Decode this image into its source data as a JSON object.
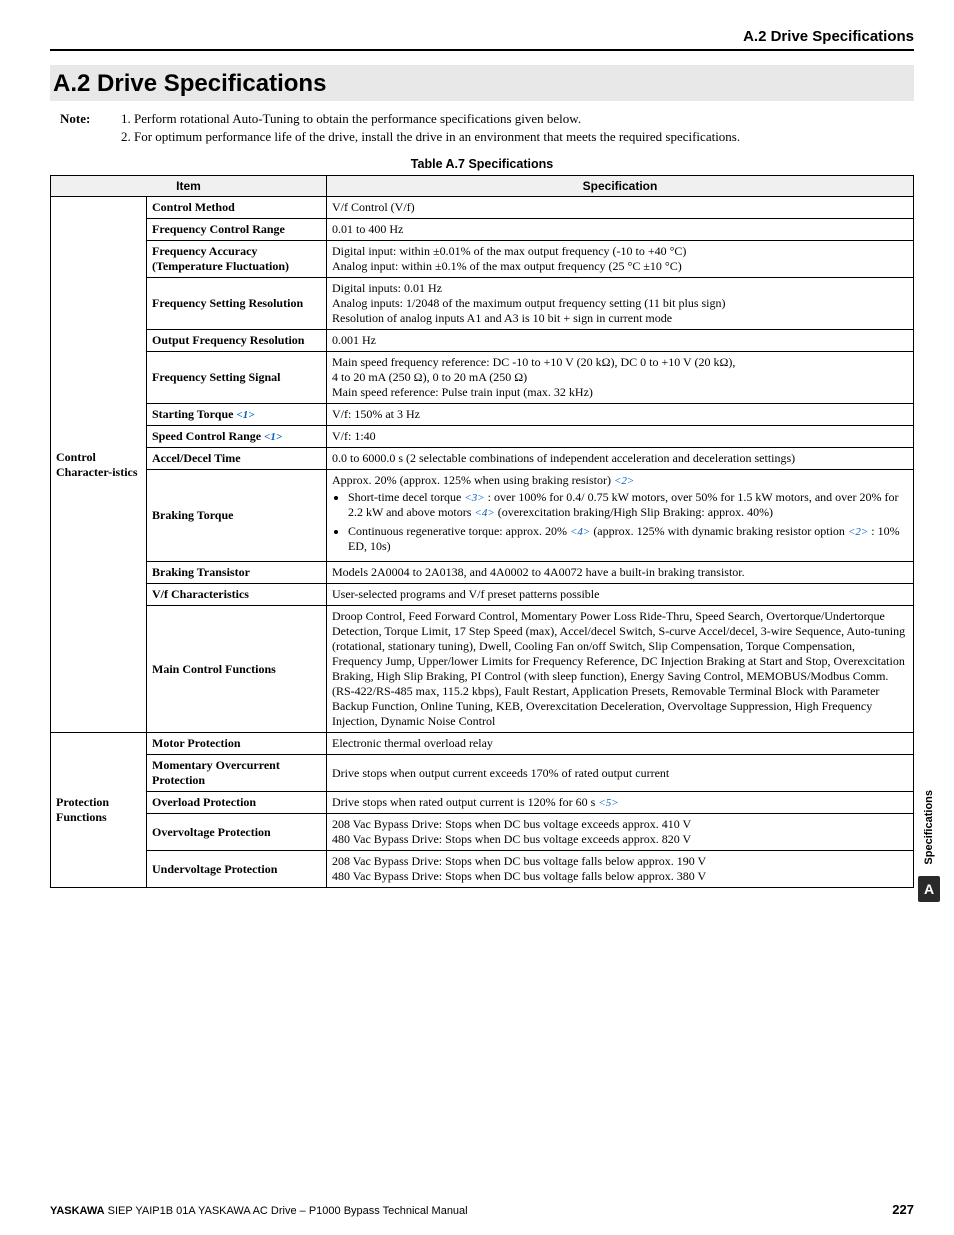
{
  "header": {
    "right": "A.2 Drive Specifications"
  },
  "section": {
    "title": "A.2  Drive Specifications"
  },
  "notes": {
    "label": "Note:",
    "items": [
      "Perform rotational Auto-Tuning to obtain the performance specifications given below.",
      "For optimum performance life of the drive, install the drive in an environment that meets the required specifications."
    ]
  },
  "table": {
    "caption": "Table A.7  Specifications",
    "head": {
      "item": "Item",
      "spec": "Specification"
    },
    "groups": [
      {
        "category": "Control Character-istics",
        "rows": [
          {
            "item": "Control Method",
            "spec_html": "V/f Control (V/f)"
          },
          {
            "item": "Frequency Control Range",
            "spec_html": "0.01 to 400 Hz"
          },
          {
            "item": "Frequency Accuracy (Temperature Fluctuation)",
            "spec_html": "Digital input: within ±0.01% of the max output frequency (-10 to +40 °C)<br>Analog input: within ±0.1% of the max output frequency (25 °C ±10 °C)"
          },
          {
            "item": "Frequency Setting Resolution",
            "spec_html": "Digital inputs: 0.01 Hz<br>Analog inputs: 1/2048 of the maximum output frequency setting (11 bit plus sign)<br>Resolution of analog inputs A1 and A3 is 10 bit + sign in current mode"
          },
          {
            "item": "Output Frequency Resolution",
            "spec_html": "0.001 Hz"
          },
          {
            "item": "Frequency Setting Signal",
            "spec_html": "Main speed frequency reference: DC -10 to +10 V (20 kΩ), DC 0 to +10 V (20 kΩ),<br>4 to 20 mA (250 Ω), 0 to 20 mA (250 Ω)<br>Main speed reference: Pulse train input (max. 32 kHz)"
          },
          {
            "item_html": "Starting Torque <span class=\"ref\">&lt;1&gt;</span>",
            "spec_html": "V/f: 150% at 3 Hz"
          },
          {
            "item_html": "Speed Control Range <span class=\"ref\">&lt;1&gt;</span>",
            "spec_html": "V/f: 1:40"
          },
          {
            "item": "Accel/Decel Time",
            "spec_html": "0.0 to 6000.0 s (2 selectable combinations of independent acceleration and deceleration settings)"
          },
          {
            "item": "Braking Torque",
            "spec_html": "Approx. 20% (approx. 125% when using braking resistor) <span class=\"ref\">&lt;2&gt;</span><ul class=\"bullets\"><li>Short-time decel torque <span class=\"ref\">&lt;3&gt;</span> : over 100% for 0.4/ 0.75 kW motors, over 50% for 1.5 kW motors, and over 20% for 2.2 kW and above motors <span class=\"ref\">&lt;4&gt;</span> (overexcitation braking/High Slip Braking: approx. 40%)</li><li>Continuous regenerative torque: approx. 20% <span class=\"ref\">&lt;4&gt;</span> (approx. 125% with dynamic braking resistor option <span class=\"ref\">&lt;2&gt;</span> : 10% ED, 10s)</li></ul>"
          },
          {
            "item": "Braking Transistor",
            "spec_html": "Models 2A0004 to 2A0138, and 4A0002 to 4A0072 have a built-in braking transistor."
          },
          {
            "item": "V/f Characteristics",
            "spec_html": "User-selected programs and V/f preset patterns possible"
          },
          {
            "item": "Main Control Functions",
            "spec_html": "Droop Control, Feed Forward Control, Momentary Power Loss Ride-Thru, Speed Search, Overtorque/Undertorque Detection, Torque Limit, 17 Step Speed (max), Accel/decel Switch, S-curve Accel/decel, 3-wire Sequence, Auto-tuning (rotational, stationary tuning), Dwell, Cooling Fan on/off Switch, Slip Compensation, Torque Compensation, Frequency Jump, Upper/lower Limits for Frequency Reference, DC Injection Braking at Start and Stop, Overexcitation Braking, High Slip Braking, PI Control (with sleep function), Energy Saving Control, MEMOBUS/Modbus Comm. (RS-422/RS-485 max, 115.2 kbps), Fault Restart, Application Presets, Removable Terminal Block with Parameter Backup Function, Online Tuning, KEB, Overexcitation Deceleration, Overvoltage Suppression, High Frequency Injection, Dynamic Noise Control"
          }
        ]
      },
      {
        "category": "Protection Functions",
        "rows": [
          {
            "item": "Motor Protection",
            "spec_html": "Electronic thermal overload relay"
          },
          {
            "item": "Momentary Overcurrent Protection",
            "spec_html": "Drive stops when output current exceeds 170% of rated output current"
          },
          {
            "item": "Overload Protection",
            "spec_html": "Drive stops when rated output current is 120% for 60 s <span class=\"ref\">&lt;5&gt;</span>"
          },
          {
            "item": "Overvoltage Protection",
            "spec_html": "208 Vac Bypass Drive: Stops when DC bus voltage exceeds approx. 410 V<br>480 Vac Bypass Drive: Stops when DC bus voltage exceeds approx. 820 V"
          },
          {
            "item": "Undervoltage Protection",
            "spec_html": "208 Vac Bypass Drive: Stops when DC bus voltage falls below approx. 190 V<br>480 Vac Bypass Drive: Stops when DC bus voltage falls below approx. 380 V"
          }
        ]
      }
    ]
  },
  "sidetab": {
    "label": "Specifications",
    "letter": "A"
  },
  "footer": {
    "brand": "YASKAWA",
    "doc": " SIEP YAIP1B 01A YASKAWA AC Drive – P1000 Bypass Technical Manual",
    "page": "227"
  }
}
